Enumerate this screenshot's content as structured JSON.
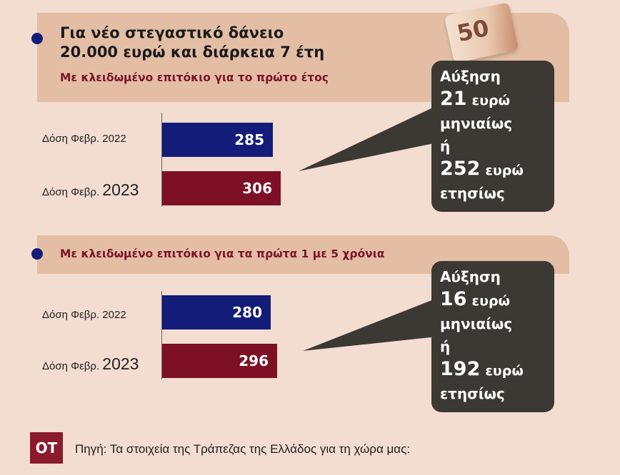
{
  "header": {
    "title_line1": "Για νέο στεγαστικό δάνειο",
    "title_line2": "20.000 ευρώ και διάρκεια 7 έτη",
    "note_value": "50"
  },
  "chart_data": [
    {
      "type": "bar",
      "orientation": "horizontal",
      "subtitle": "Με κλειδωμένο επιτόκιο για το πρώτο έτος",
      "categories": [
        "Δόση Φεβρ. 2022",
        "Δόση Φεβρ. 2023"
      ],
      "category_parts": [
        {
          "prefix": "Δόση Φεβρ.",
          "year": "2022"
        },
        {
          "prefix": "Δόση Φεβρ.",
          "year": "2023"
        }
      ],
      "values": [
        285,
        306
      ],
      "value_labels": [
        "285",
        "306"
      ],
      "colors": [
        "#131c78",
        "#7e1026"
      ],
      "callout": {
        "line1": "Αύξηση",
        "monthly_value": "21",
        "monthly_unit": "ευρώ",
        "monthly_label": "μηνιαίως",
        "or": "ή",
        "yearly_value": "252",
        "yearly_unit": "ευρώ",
        "yearly_label": "ετησίως"
      }
    },
    {
      "type": "bar",
      "orientation": "horizontal",
      "subtitle": "Με κλειδωμένο επιτόκιο για τα πρώτα 1 με 5 χρόνια",
      "categories": [
        "Δόση Φεβρ. 2022",
        "Δόση Φεβρ. 2023"
      ],
      "category_parts": [
        {
          "prefix": "Δόση Φεβρ.",
          "year": "2022"
        },
        {
          "prefix": "Δόση Φεβρ.",
          "year": "2023"
        }
      ],
      "values": [
        280,
        296
      ],
      "value_labels": [
        "280",
        "296"
      ],
      "colors": [
        "#131c78",
        "#7e1026"
      ],
      "callout": {
        "line1": "Αύξηση",
        "monthly_value": "16",
        "monthly_unit": "ευρώ",
        "monthly_label": "μηνιαίως",
        "or": "ή",
        "yearly_value": "192",
        "yearly_unit": "ευρώ",
        "yearly_label": "ετησίως"
      }
    }
  ],
  "footer": {
    "logo": "ΟΤ",
    "source": "Πηγή: Τα στοιχεία της Τράπεζας της Ελλάδος για τη χώρα μας:"
  }
}
